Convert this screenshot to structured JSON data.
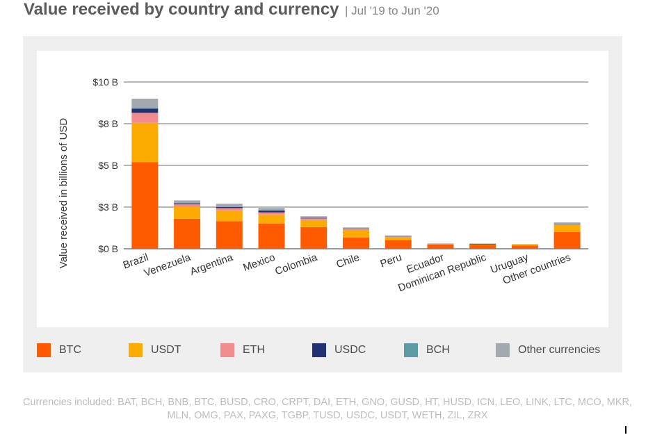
{
  "header": {
    "title": "Value received by country and currency",
    "subtitle": "| Jul '19 to Jun '20"
  },
  "chart_data": {
    "type": "bar",
    "stacked": true,
    "ylabel": "Value received in billions of USD",
    "xlabel": "",
    "ylim": [
      0,
      10
    ],
    "yticks": [
      {
        "value": 0,
        "label": "$0 B"
      },
      {
        "value": 2.5,
        "label": "$3 B"
      },
      {
        "value": 5,
        "label": "$5 B"
      },
      {
        "value": 7.5,
        "label": "$8 B"
      },
      {
        "value": 10,
        "label": "$10 B"
      }
    ],
    "grid": true,
    "legend_position": "bottom",
    "categories": [
      "Brazil",
      "Venezuela",
      "Argentina",
      "Mexico",
      "Colombia",
      "Chile",
      "Peru",
      "Ecuador",
      "Dominican Republic",
      "Uruguay",
      "Other countries"
    ],
    "series": [
      {
        "name": "BTC",
        "color": "#ff5a00",
        "values": [
          5.2,
          1.8,
          1.65,
          1.5,
          1.3,
          0.68,
          0.52,
          0.25,
          0.23,
          0.2,
          1.0
        ]
      },
      {
        "name": "USDT",
        "color": "#fcab00",
        "values": [
          2.35,
          0.7,
          0.65,
          0.55,
          0.42,
          0.45,
          0.17,
          0.04,
          0.02,
          0.05,
          0.42
        ]
      },
      {
        "name": "ETH",
        "color": "#f28b8e",
        "values": [
          0.6,
          0.17,
          0.14,
          0.13,
          0.1,
          0.06,
          0.03,
          0.01,
          0.01,
          0.01,
          0.05
        ]
      },
      {
        "name": "USDC",
        "color": "#223075",
        "values": [
          0.25,
          0.05,
          0.06,
          0.12,
          0.03,
          0.02,
          0.01,
          0.0,
          0.03,
          0.0,
          0.02
        ]
      },
      {
        "name": "BCH",
        "color": "#5b9da7",
        "values": [
          0.05,
          0.03,
          0.03,
          0.02,
          0.02,
          0.01,
          0.01,
          0.01,
          0.01,
          0.0,
          0.01
        ]
      },
      {
        "name": "Other currencies",
        "color": "#a3a9b0",
        "values": [
          0.55,
          0.15,
          0.17,
          0.13,
          0.08,
          0.06,
          0.06,
          0.01,
          0.02,
          0.02,
          0.08
        ]
      }
    ]
  },
  "footnote": "Currencies included: BAT, BCH, BNB, BTC, BUSD, CRO, CRPT, DAI, ETH, GNO, GUSD, HT, HUSD, ICN, LEO, LINK, LTC, MCO, MKR, MLN, OMG, PAX, PAXG, TGBP, TUSD, USDC, USDT, WETH, ZIL, ZRX"
}
